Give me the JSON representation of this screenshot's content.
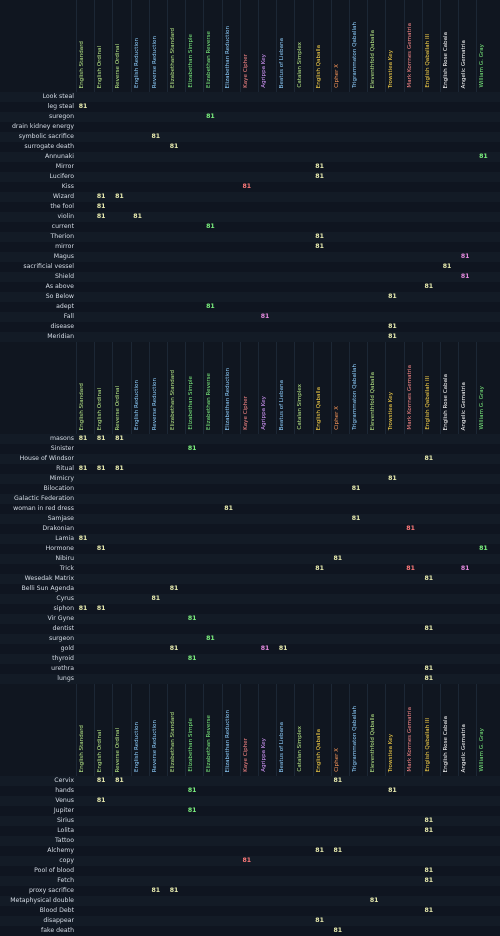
{
  "columns": [
    {
      "label": "English Standard",
      "color": "#b8e986"
    },
    {
      "label": "English Ordinal",
      "color": "#b8e986"
    },
    {
      "label": "Reverse Ordinal",
      "color": "#b8e986"
    },
    {
      "label": "English Reduction",
      "color": "#8fd0ff"
    },
    {
      "label": "Reverse Reduction",
      "color": "#8fd0ff"
    },
    {
      "label": "Elizabethan Standard",
      "color": "#b8e986"
    },
    {
      "label": "Elizabethan Simple",
      "color": "#7cf07e"
    },
    {
      "label": "Elizabethan Reverse",
      "color": "#7cf07e"
    },
    {
      "label": "Elizabethan Reduction",
      "color": "#8fd0ff"
    },
    {
      "label": "Kaye Cipher",
      "color": "#ff8a8a"
    },
    {
      "label": "Agrippa Key",
      "color": "#d89bff"
    },
    {
      "label": "Beatus of Liebana",
      "color": "#8fd0ff"
    },
    {
      "label": "Catalan Simplex",
      "color": "#b8e986"
    },
    {
      "label": "English Qaballa",
      "color": "#ffd84a"
    },
    {
      "label": "Cipher X",
      "color": "#ff9a5a"
    },
    {
      "label": "Trigrammaton Qaballah",
      "color": "#8fd0ff"
    },
    {
      "label": "Eleventhfold Qaballa",
      "color": "#b8e986"
    },
    {
      "label": "Trowstiea Key",
      "color": "#ffd84a"
    },
    {
      "label": "Mark Korrnes Gematria",
      "color": "#ff8a8a"
    },
    {
      "label": "English Qaballah III",
      "color": "#ffd84a"
    },
    {
      "label": "English Rose Cabala",
      "color": "#ffffff"
    },
    {
      "label": "Angelic Gematria",
      "color": "#ffffff"
    },
    {
      "label": "William G. Gray",
      "color": "#7cf07e"
    }
  ],
  "sections": [
    {
      "rows": [
        {
          "label": "Look steal",
          "hits": {}
        },
        {
          "label": "leg steal",
          "hits": {
            "0": "81"
          }
        },
        {
          "label": "suregon",
          "hits": {
            "7": "81"
          }
        },
        {
          "label": "drain kidney energy",
          "hits": {}
        },
        {
          "label": "symbolic sacrifice",
          "hits": {
            "4": "81"
          }
        },
        {
          "label": "surrogate death",
          "hits": {
            "5": "81"
          }
        },
        {
          "label": "Annunaki",
          "hits": {
            "22": "81"
          }
        },
        {
          "label": "Mirror",
          "hits": {
            "13": "81"
          }
        },
        {
          "label": "Lucifero",
          "hits": {
            "13": "81"
          }
        },
        {
          "label": "Kiss",
          "hits": {
            "9": "81"
          }
        },
        {
          "label": "Wizard",
          "hits": {
            "1": "81",
            "2": "81"
          }
        },
        {
          "label": "the fool",
          "hits": {
            "1": "81"
          }
        },
        {
          "label": "violin",
          "hits": {
            "1": "81",
            "3": "81"
          }
        },
        {
          "label": "current",
          "hits": {
            "7": "81"
          }
        },
        {
          "label": "Therion",
          "hits": {
            "13": "81"
          }
        },
        {
          "label": "mirror",
          "hits": {
            "13": "81"
          }
        },
        {
          "label": "Magus",
          "hits": {
            "21": "81"
          }
        },
        {
          "label": "sacrificial vessel",
          "hits": {
            "20": "81"
          }
        },
        {
          "label": "Shield",
          "hits": {
            "21": "81"
          }
        },
        {
          "label": "As above",
          "hits": {
            "19": "81"
          }
        },
        {
          "label": "So Below",
          "hits": {
            "17": "81"
          }
        },
        {
          "label": "adept",
          "hits": {
            "7": "81"
          }
        },
        {
          "label": "Fall",
          "hits": {
            "10": "81"
          }
        },
        {
          "label": "disease",
          "hits": {
            "17": "81"
          }
        },
        {
          "label": "Meridian",
          "hits": {
            "17": "81"
          }
        }
      ]
    },
    {
      "rows": [
        {
          "label": "masons",
          "hits": {
            "0": "81",
            "1": "81",
            "2": "81"
          }
        },
        {
          "label": "Sinister",
          "hits": {
            "6": "81"
          }
        },
        {
          "label": "House of Windsor",
          "hits": {
            "19": "81"
          }
        },
        {
          "label": "Ritual",
          "hits": {
            "0": "81",
            "1": "81",
            "2": "81"
          }
        },
        {
          "label": "Mimicry",
          "hits": {
            "17": "81"
          }
        },
        {
          "label": "Bilocation",
          "hits": {
            "15": "81"
          }
        },
        {
          "label": "Galactic Federation",
          "hits": {}
        },
        {
          "label": "woman in red dress",
          "hits": {
            "8": "81"
          }
        },
        {
          "label": "Samjase",
          "hits": {
            "15": "81"
          }
        },
        {
          "label": "Drakonian",
          "hits": {
            "18": "81"
          }
        },
        {
          "label": "Lamia",
          "hits": {
            "0": "81"
          }
        },
        {
          "label": "Hormone",
          "hits": {
            "1": "81",
            "22": "81"
          }
        },
        {
          "label": "Nibiru",
          "hits": {
            "14": "81"
          }
        },
        {
          "label": "Trick",
          "hits": {
            "13": "81",
            "18": "81",
            "21": "81"
          }
        },
        {
          "label": "Wesedak Matrix",
          "hits": {
            "19": "81"
          }
        },
        {
          "label": "Belli Sun Agenda",
          "hits": {
            "5": "81"
          }
        },
        {
          "label": "Cyrus",
          "hits": {
            "4": "81"
          }
        },
        {
          "label": "siphon",
          "hits": {
            "0": "81",
            "1": "81"
          }
        },
        {
          "label": "Vir Gyne",
          "hits": {
            "6": "81"
          }
        },
        {
          "label": "dentist",
          "hits": {
            "19": "81"
          }
        },
        {
          "label": "surgeon",
          "hits": {
            "7": "81"
          }
        },
        {
          "label": "gold",
          "hits": {
            "5": "81",
            "10": "81",
            "11": "81"
          }
        },
        {
          "label": "thyroid",
          "hits": {
            "6": "81"
          }
        },
        {
          "label": "urethra",
          "hits": {
            "19": "81"
          }
        },
        {
          "label": "lungs",
          "hits": {
            "19": "81"
          }
        }
      ]
    },
    {
      "rows": [
        {
          "label": "Cervix",
          "hits": {
            "1": "81",
            "2": "81",
            "14": "81"
          }
        },
        {
          "label": "hands",
          "hits": {
            "6": "81",
            "17": "81"
          }
        },
        {
          "label": "Venus",
          "hits": {
            "1": "81"
          }
        },
        {
          "label": "Jupiter",
          "hits": {
            "6": "81"
          }
        },
        {
          "label": "Sirius",
          "hits": {
            "19": "81"
          }
        },
        {
          "label": "Lolita",
          "hats": {},
          "hits": {
            "19": "81"
          }
        },
        {
          "label": "Tattoo",
          "hits": {}
        },
        {
          "label": "Alchemy",
          "hits": {
            "13": "81",
            "14": "81"
          }
        },
        {
          "label": "copy",
          "hits": {
            "9": "81"
          }
        },
        {
          "label": "Pool of blood",
          "hits": {
            "19": "81"
          }
        },
        {
          "label": "Fetch",
          "hits": {
            "19": "81"
          }
        },
        {
          "label": "proxy sacrifice",
          "hits": {
            "4": "81",
            "5": "81"
          }
        },
        {
          "label": "Metaphysical double",
          "hits": {
            "16": "81"
          }
        },
        {
          "label": "Blood Debt",
          "hits": {
            "19": "81"
          }
        },
        {
          "label": "disappear",
          "hits": {
            "13": "81"
          }
        },
        {
          "label": "fake death",
          "hits": {
            "14": "81"
          }
        }
      ]
    }
  ],
  "hitColors": {
    "default": "#e9ecb0",
    "green": "#7cf07e"
  }
}
